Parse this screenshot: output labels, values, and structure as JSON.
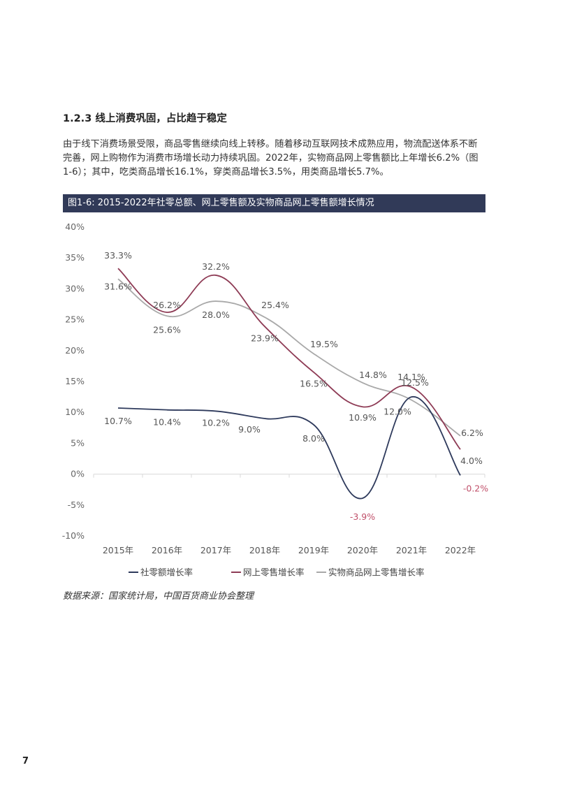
{
  "section_heading": "1.2.3 线上消费巩固，占比趋于稳定",
  "paragraph": "由于线下消费场景受限，商品零售继续向线上转移。随着移动互联网技术成熟应用，物流配送体系不断完善，网上购物作为消费市场增长动力持续巩固。2022年，实物商品网上零售额比上年增长6.2%（图1-6）；其中，吃类商品增长16.1%，穿类商品增长3.5%，用类商品增长5.7%。",
  "figure_title": "图1-6: 2015-2022年社零总额、网上零售额及实物商品网上零售额增长情况",
  "source": "数据来源：国家统计局，中国百货商业协会整理",
  "page_number": "7",
  "colors": {
    "banner": "#313a58",
    "series": [
      "#2e3a5c",
      "#8e3b55",
      "#a9a9a9"
    ],
    "negative_label": "#c0506a"
  },
  "chart_data": {
    "type": "line",
    "title": "",
    "xlabel": "",
    "ylabel": "",
    "categories": [
      "2015年",
      "2016年",
      "2017年",
      "2018年",
      "2019年",
      "2020年",
      "2021年",
      "2022年"
    ],
    "y_ticks": [
      "40%",
      "35%",
      "30%",
      "25%",
      "20%",
      "15%",
      "10%",
      "5%",
      "0%",
      "-5%",
      "-10%"
    ],
    "ylim": [
      -10,
      40
    ],
    "smooth": true,
    "legend": "bottom",
    "series": [
      {
        "name": "社零额增长率",
        "values": [
          10.7,
          10.4,
          10.2,
          9.0,
          8.0,
          -3.9,
          12.5,
          -0.2
        ],
        "labels": [
          "10.7%",
          "10.4%",
          "10.2%",
          "9.0%",
          "8.0%",
          "-3.9%",
          "12.5%",
          "-0.2%"
        ]
      },
      {
        "name": "网上零售增长率",
        "values": [
          33.3,
          26.2,
          32.2,
          23.9,
          16.5,
          10.9,
          14.1,
          4.0
        ],
        "labels": [
          "33.3%",
          "26.2%",
          "32.2%",
          "23.9%",
          "16.5%",
          "10.9%",
          "14.1%",
          "4.0%"
        ]
      },
      {
        "name": "实物商品网上零售增长率",
        "values": [
          31.6,
          25.6,
          28.0,
          25.4,
          19.5,
          14.8,
          12.0,
          6.2
        ],
        "labels": [
          "31.6%",
          "25.6%",
          "28.0%",
          "25.4%",
          "19.5%",
          "14.8%",
          "12.0%",
          "6.2%"
        ]
      }
    ]
  }
}
